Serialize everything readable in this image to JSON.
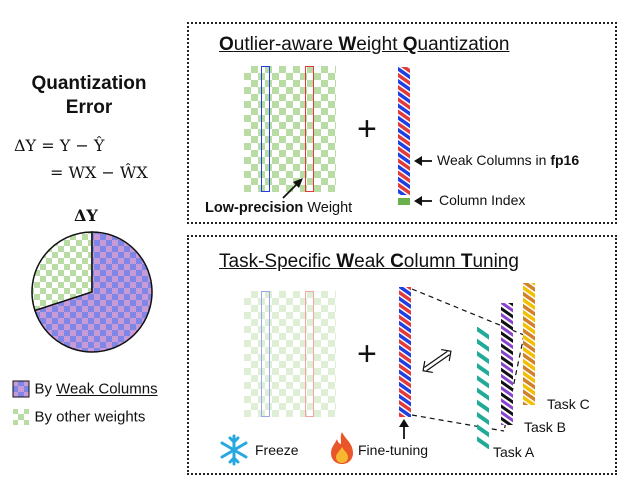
{
  "left": {
    "title_line1": "Quantization",
    "title_line2": "Error",
    "eq_line1": "ΔY = Y − Ŷ",
    "eq_line2": "= WX − ŴX",
    "pie_title": "ΔY",
    "pie_fractions": {
      "weak_columns": 0.7,
      "other_weights": 0.3
    },
    "legend": {
      "item1_prefix": "By ",
      "item1_underlined": "Weak Columns",
      "item2": "By other weights"
    }
  },
  "top_panel": {
    "title_parts": [
      {
        "t": "O",
        "b": true
      },
      {
        "t": "utlier-aware ",
        "b": false
      },
      {
        "t": "W",
        "b": true
      },
      {
        "t": "eight ",
        "b": false
      },
      {
        "t": "Q",
        "b": true
      },
      {
        "t": "uantization",
        "b": false
      }
    ],
    "matrix_label_bold": "Low-precision",
    "matrix_label_rest": " Weight",
    "plus": "+",
    "weak_label_prefix": "Weak Columns in ",
    "weak_label_bold": "fp16",
    "index_label": "Column Index"
  },
  "bottom_panel": {
    "title_parts": [
      {
        "t": "Task-Specific ",
        "b": false
      },
      {
        "t": "W",
        "b": true
      },
      {
        "t": "eak ",
        "b": false
      },
      {
        "t": "C",
        "b": true
      },
      {
        "t": "olumn ",
        "b": false
      },
      {
        "t": "T",
        "b": true
      },
      {
        "t": "uning",
        "b": false
      }
    ],
    "plus": "+",
    "freeze_label": "Freeze",
    "finetune_label": "Fine-tuning",
    "task_a": "Task A",
    "task_b": "Task B",
    "task_c": "Task C"
  },
  "colors": {
    "checker_green": "#b9dca4",
    "checker_pink": "#c99bd6",
    "column_blue": "#1f3fe0",
    "column_red": "#e23a3a",
    "task_a_color": "#22aa99",
    "task_b_black": "#111111",
    "task_b_purple": "#8844cc",
    "task_c_yellow": "#f2c000",
    "task_c_orange": "#d2802a",
    "index_green": "#6ab04c",
    "snow": "#29a8e0",
    "fire": "#e8562a"
  }
}
